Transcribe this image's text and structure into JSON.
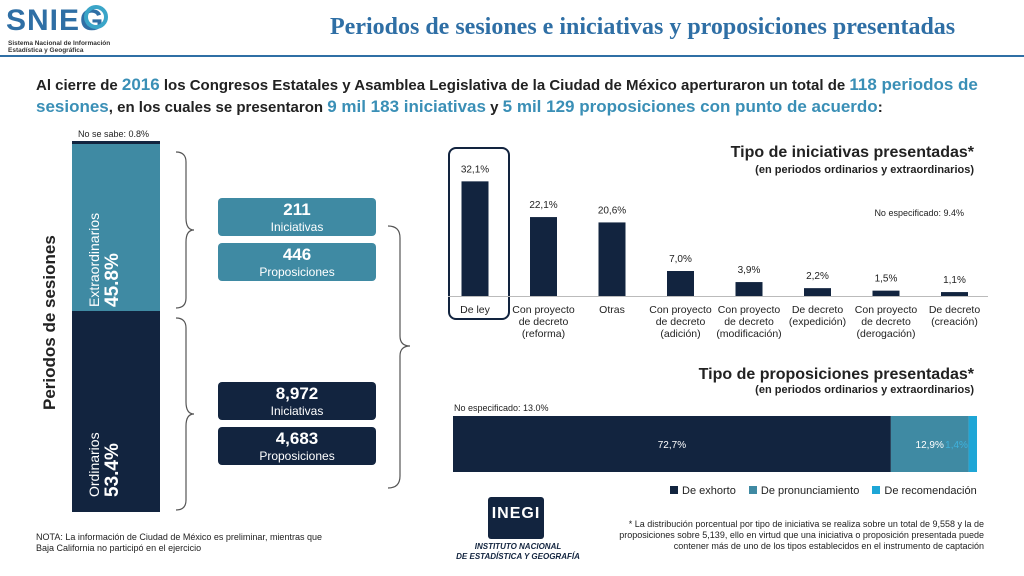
{
  "logo": {
    "text": "SNIEG",
    "subtitle_line1": "Sistema Nacional de Información",
    "subtitle_line2": "Estadística y Geográfica"
  },
  "header": {
    "title": "Periodos de sesiones e iniciativas y proposiciones presentadas"
  },
  "intro": {
    "t1": "Al cierre de ",
    "year": "2016",
    "t2": " los Congresos Estatales y Asamblea Legislativa de la Ciudad de México aperturaron un total de ",
    "periods": "118 periodos de sesiones",
    "t3": ", en los cuales se presentaron ",
    "initiatives": "9 mil 183 iniciativas",
    "t4": " y ",
    "proposals": "5 mil 129 proposiciones con punto de acuerdo",
    "t5": ":"
  },
  "periods": {
    "axis_label": "Periodos de sesiones",
    "unknown_label": "No se sabe: 0.8%",
    "extra": {
      "name": "Extraordinarios",
      "pct": "45.8%",
      "share": 45.8
    },
    "ord": {
      "name": "Ordinarios",
      "pct": "53.4%",
      "share": 53.4
    },
    "unknown_share": 0.8
  },
  "boxes": [
    {
      "value": "211",
      "label": "Iniciativas",
      "color": "#3f8aa3"
    },
    {
      "value": "446",
      "label": "Proposiciones",
      "color": "#3f8aa3"
    },
    {
      "value": "8,972",
      "label": "Iniciativas",
      "color": "#12243f"
    },
    {
      "value": "4,683",
      "label": "Proposiciones",
      "color": "#12243f"
    }
  ],
  "iniciativas": {
    "title": "Tipo de iniciativas presentadas*",
    "subtitle": "(en periodos ordinarios y extraordinarios)",
    "not_specified": "No especificado: 9.4%"
  },
  "proposiciones": {
    "title": "Tipo de proposiciones presentadas*",
    "subtitle": "(en periodos ordinarios y extraordinarios)",
    "not_specified": "No especificado: 13.0%"
  },
  "chart_data": [
    {
      "type": "bar",
      "title": "Tipo de iniciativas presentadas*",
      "subtitle": "(en periodos ordinarios y extraordinarios)",
      "categories": [
        "De ley",
        "Con proyecto de decreto (reforma)",
        "Otras",
        "Con proyecto de decreto (adición)",
        "Con proyecto de decreto (modificación)",
        "De decreto (expedición)",
        "Con proyecto de decreto (derogación)",
        "De decreto (creación)"
      ],
      "category_lines": [
        [
          "De ley"
        ],
        [
          "Con proyecto",
          "de decreto",
          "(reforma)"
        ],
        [
          "Otras"
        ],
        [
          "Con proyecto",
          "de decreto",
          "(adición)"
        ],
        [
          "Con proyecto",
          "de decreto",
          "(modificación)"
        ],
        [
          "De decreto",
          "(expedición)"
        ],
        [
          "Con proyecto",
          "de decreto",
          "(derogación)"
        ],
        [
          "De decreto",
          "(creación)"
        ]
      ],
      "values": [
        32.1,
        22.1,
        20.6,
        7.0,
        3.9,
        2.2,
        1.5,
        1.1
      ],
      "value_labels": [
        "32,1%",
        "22,1%",
        "20,6%",
        "7,0%",
        "3,9%",
        "2,2%",
        "1,5%",
        "1,1%"
      ],
      "ylim": [
        0,
        35
      ],
      "grid": false,
      "color": "#12243f",
      "highlighted_category": "De ley"
    },
    {
      "type": "bar",
      "orientation": "horizontal-stacked",
      "title": "Tipo de proposiciones presentadas*",
      "subtitle": "(en periodos ordinarios y extraordinarios)",
      "series": [
        {
          "name": "De exhorto",
          "value": 72.7,
          "label": "72,7%",
          "color": "#12243f"
        },
        {
          "name": "De pronunciamiento",
          "value": 12.9,
          "label": "12,9%",
          "color": "#3f8aa3"
        },
        {
          "name": "De recomendación",
          "value": 1.4,
          "label": "1,4%",
          "color": "#1ea6d6"
        }
      ],
      "legend_position": "bottom"
    }
  ],
  "notes": {
    "nota": "NOTA: La información de Ciudad de México es preliminar, mientras que Baja California no participó en el ejercicio",
    "footnote": "* La distribución porcentual por tipo de iniciativa se realiza sobre un total de 9,558 y la de proposiciones sobre 5,139, ello en virtud que una iniciativa o proposición presentada puede contener más de uno de los tipos establecidos en el instrumento de captación"
  },
  "inegi": {
    "mark": "INEGI",
    "name_line1": "INSTITUTO NACIONAL",
    "name_line2": "DE ESTADÍSTICA Y GEOGRAFÍA"
  }
}
